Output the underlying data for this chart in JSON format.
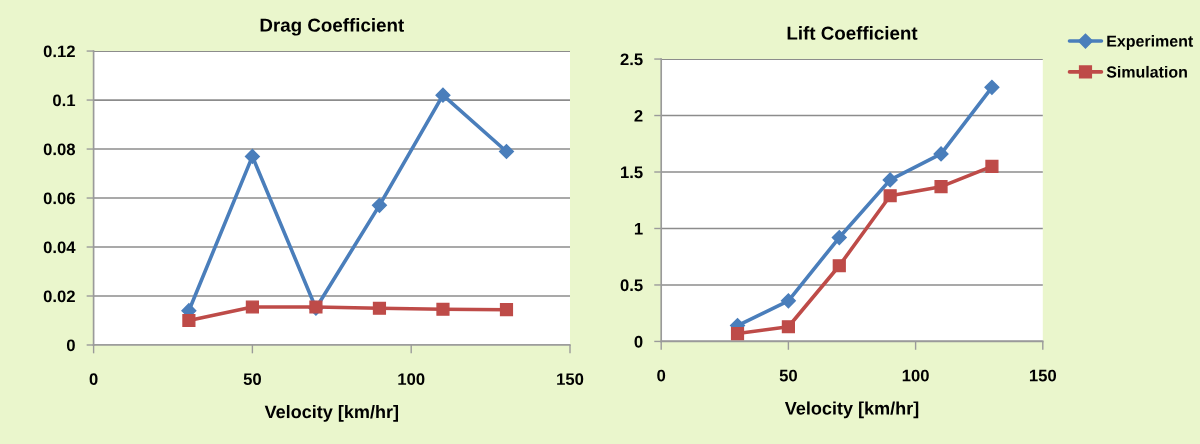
{
  "chart_data": [
    {
      "type": "line",
      "title": "Drag Coefficient",
      "xlabel": "Velocity [km/hr]",
      "x": [
        30,
        50,
        70,
        90,
        110,
        130
      ],
      "xlim": [
        0,
        150
      ],
      "xticks": [
        0,
        50,
        100,
        150
      ],
      "ylim": [
        0,
        0.12
      ],
      "yticks": [
        0,
        0.02,
        0.04,
        0.06,
        0.08,
        0.1,
        0.12
      ],
      "grid": "y",
      "legend": false,
      "line_style": "solid",
      "series": [
        {
          "color": "#4a7ebb",
          "marker": "diamond",
          "values": [
            0.014,
            0.077,
            0.015,
            0.057,
            0.102,
            0.079
          ]
        },
        {
          "color": "#be4b48",
          "marker": "square",
          "values": [
            0.01,
            0.0155,
            0.0155,
            0.015,
            0.0146,
            0.0144
          ]
        }
      ]
    },
    {
      "type": "line",
      "title": "Lift Coefficient",
      "xlabel": "Velocity [km/hr]",
      "x": [
        30,
        50,
        70,
        90,
        110,
        130
      ],
      "xlim": [
        0,
        150
      ],
      "xticks": [
        0,
        50,
        100,
        150
      ],
      "ylim": [
        0,
        2.5
      ],
      "yticks": [
        0,
        0.5,
        1,
        1.5,
        2,
        2.5
      ],
      "grid": "y",
      "legend": "top right",
      "line_style": "solid",
      "series": [
        {
          "name": "Experiment",
          "color": "#4a7ebb",
          "marker": "diamond",
          "values": [
            0.14,
            0.36,
            0.92,
            1.43,
            1.66,
            2.25
          ]
        },
        {
          "name": "Simulation",
          "color": "#be4b48",
          "marker": "square",
          "values": [
            0.07,
            0.13,
            0.67,
            1.29,
            1.37,
            1.55
          ]
        }
      ]
    }
  ]
}
